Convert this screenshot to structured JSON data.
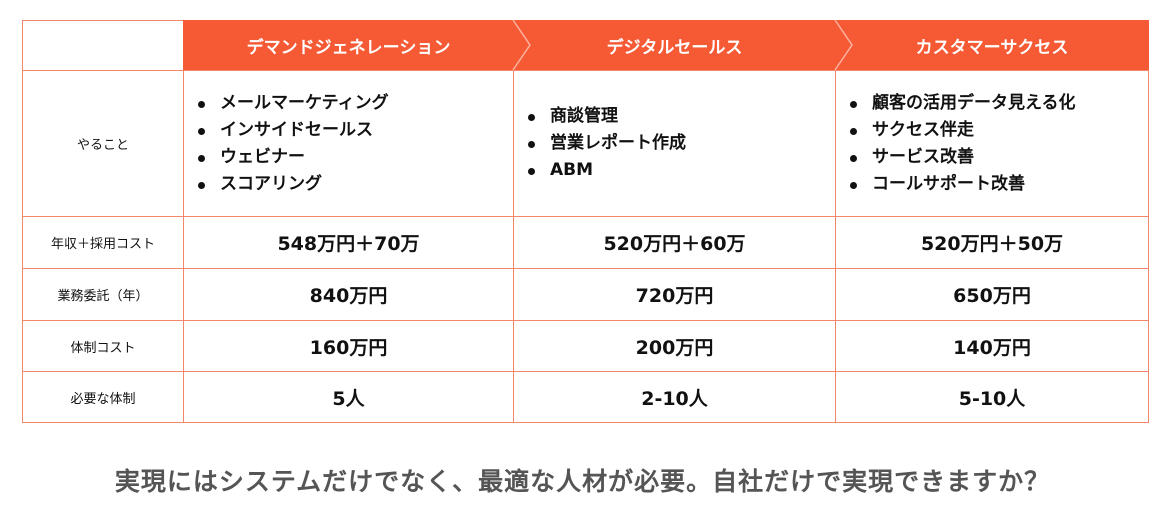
{
  "table": {
    "header": [
      "デマンドジェネレーション",
      "デジタルセールス",
      "カスタマーサクセス"
    ],
    "rows": [
      {
        "label": "やること",
        "cells": [
          [
            "メールマーケティング",
            "インサイドセールス",
            "ウェビナー",
            "スコアリング"
          ],
          [
            "商談管理",
            "営業レポート作成",
            "ABM"
          ],
          [
            "顧客の活用データ見える化",
            "サクセス伴走",
            "サービス改善",
            "コールサポート改善"
          ]
        ]
      },
      {
        "label": "年収＋採用コスト",
        "cells": [
          "548万円＋70万",
          "520万円＋60万",
          "520万円＋50万"
        ]
      },
      {
        "label": "業務委託（年）",
        "cells": [
          "840万円",
          "720万円",
          "650万円"
        ]
      },
      {
        "label": "体制コスト",
        "cells": [
          "160万円",
          "200万円",
          "140万円"
        ]
      },
      {
        "label": "必要な体制",
        "cells": [
          "5人",
          "2-10人",
          "5-10人"
        ]
      }
    ]
  },
  "caption": "実現にはシステムだけでなく、最適な人材が必要。自社だけで実現できますか？"
}
